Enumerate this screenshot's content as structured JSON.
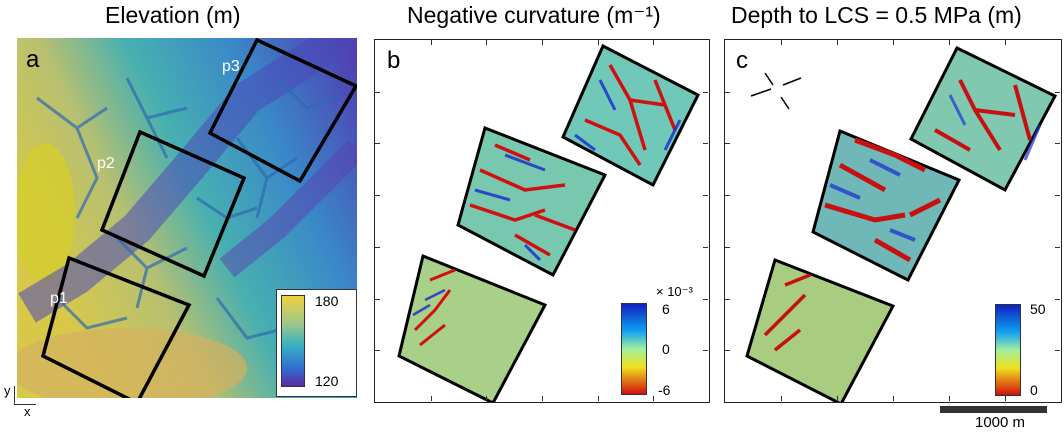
{
  "panels": [
    {
      "id": "a",
      "title": "Elevation (m)",
      "letter": "a",
      "patches": [
        "p1",
        "p2",
        "p3"
      ],
      "colorbar": {
        "max": "180",
        "min": "120"
      }
    },
    {
      "id": "b",
      "title": "Negative curvature (m⁻¹)",
      "letter": "b",
      "colorbar": {
        "exponent": "× 10⁻³",
        "max": "6",
        "mid": "0",
        "min": "-6"
      }
    },
    {
      "id": "c",
      "title": "Depth to LCS = 0.5 MPa (m)",
      "letter": "c",
      "colorbar": {
        "max": "50",
        "min": "0"
      }
    }
  ],
  "axes": {
    "y": "y",
    "x": "x"
  },
  "scalebar": {
    "label": "1000 m"
  },
  "colors": {
    "elev_high": "#e8c040",
    "elev_mid": "#4ab0b8",
    "elev_low": "#5a3aa8",
    "channel_red": "#c81010",
    "curv_blue": "#1e30d8"
  }
}
